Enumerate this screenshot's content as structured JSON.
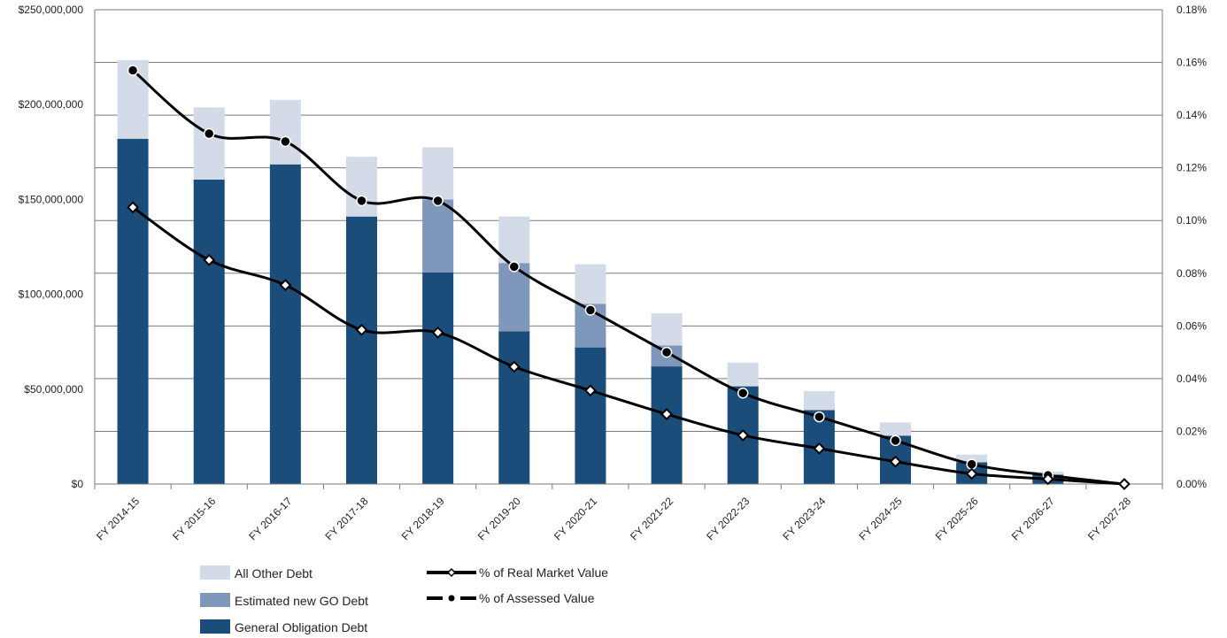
{
  "chart_data": {
    "type": "bar",
    "stacked": true,
    "categories": [
      "FY 2014-15",
      "FY 2015-16",
      "FY 2016-17",
      "FY 2017-18",
      "FY 2018-19",
      "FY 2019-20",
      "FY 2020-21",
      "FY 2021-22",
      "FY 2022-23",
      "FY 2023-24",
      "FY 2024-25",
      "FY 2025-26",
      "FY 2026-27",
      "FY 2027-28"
    ],
    "series": [
      {
        "name": "General Obligation Debt",
        "kind": "bar",
        "axis": "left",
        "color": "#1a4d7a",
        "values": [
          182000000,
          160500000,
          168500000,
          141000000,
          111500000,
          80500000,
          72000000,
          62000000,
          51500000,
          39000000,
          25500000,
          11500000,
          5000000,
          0
        ]
      },
      {
        "name": "Estimated new GO Debt",
        "kind": "bar",
        "axis": "left",
        "color": "#7f97ba",
        "values": [
          0,
          0,
          0,
          0,
          38500000,
          36000000,
          23000000,
          11000000,
          0,
          0,
          0,
          0,
          0,
          0
        ]
      },
      {
        "name": "All Other Debt",
        "kind": "bar",
        "axis": "left",
        "color": "#d3dae8",
        "values": [
          41500000,
          38000000,
          34000000,
          31500000,
          27500000,
          24500000,
          20800000,
          17000000,
          12500000,
          10000000,
          7000000,
          4000000,
          1500000,
          0
        ]
      },
      {
        "name": "% of Real Market Value",
        "kind": "line",
        "axis": "right",
        "marker": "circle",
        "values": [
          0.157,
          0.133,
          0.13,
          0.1075,
          0.1075,
          0.0825,
          0.066,
          0.05,
          0.0345,
          0.0255,
          0.0165,
          0.0075,
          0.0033,
          0.0
        ]
      },
      {
        "name": "% of Assessed Value",
        "kind": "line",
        "axis": "right",
        "marker": "diamond",
        "values": [
          0.105,
          0.085,
          0.0755,
          0.0585,
          0.0575,
          0.0445,
          0.0355,
          0.0265,
          0.0185,
          0.0135,
          0.0085,
          0.0039,
          0.0019,
          0.0
        ]
      }
    ],
    "y_left": {
      "min": 0,
      "max": 250000000,
      "ticks": [
        0,
        50000000,
        100000000,
        150000000,
        200000000,
        250000000
      ],
      "tick_labels": [
        "$0",
        "$50,000,000",
        "$100,000,000",
        "$150,000,000",
        "$200,000,000",
        "$250,000,000"
      ]
    },
    "y_right": {
      "min": 0,
      "max": 0.18,
      "ticks": [
        0,
        0.02,
        0.04,
        0.06,
        0.08,
        0.1,
        0.12,
        0.14,
        0.16,
        0.18
      ],
      "tick_labels": [
        "0.00%",
        "0.02%",
        "0.04%",
        "0.06%",
        "0.08%",
        "0.10%",
        "0.12%",
        "0.14%",
        "0.16%",
        "0.18%"
      ]
    },
    "title": "",
    "xlabel": "",
    "ylabel": "",
    "grid": true,
    "legend_position": "bottom"
  },
  "legend": {
    "bars": [
      "All Other Debt",
      "Estimated new GO Debt",
      "General Obligation Debt"
    ],
    "lines": [
      "% of Real Market Value",
      "% of Assessed Value"
    ]
  }
}
